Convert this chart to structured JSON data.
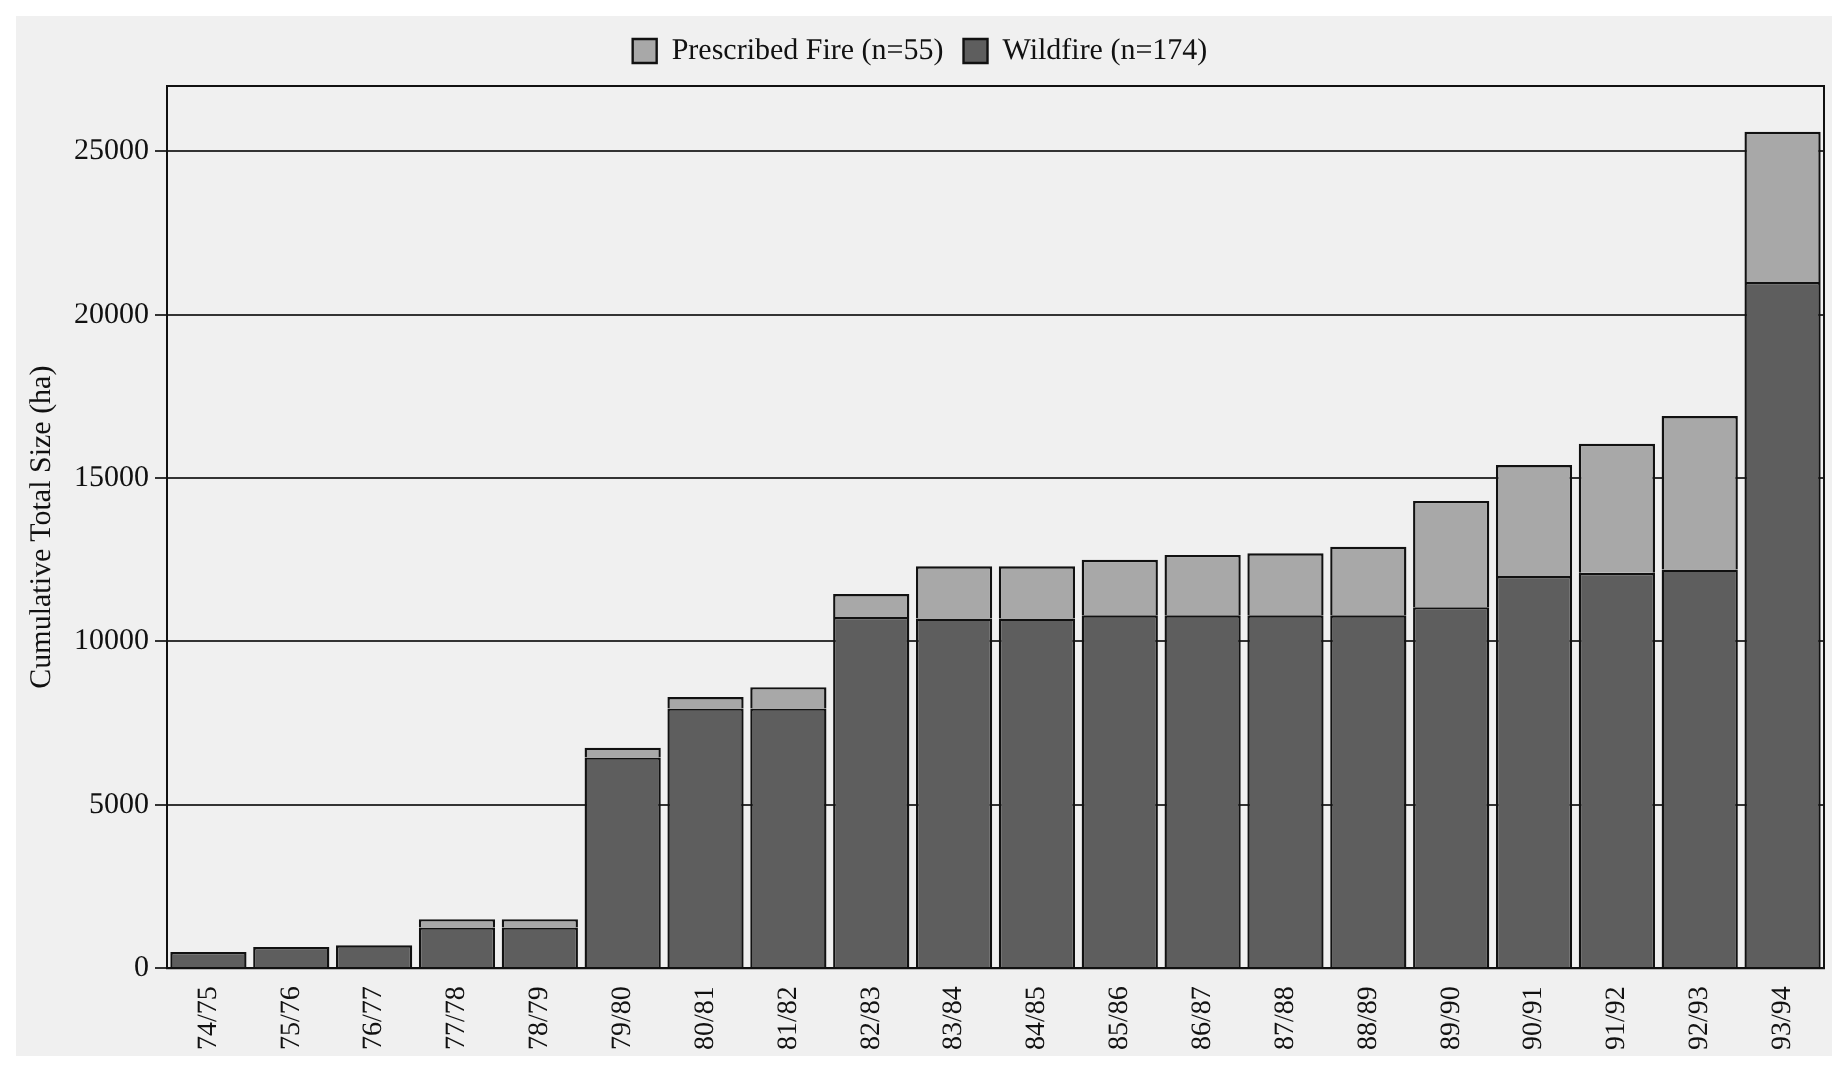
{
  "chart_data": {
    "type": "bar",
    "stacked": true,
    "ylabel": "Cumulative Total Size (ha)",
    "categories": [
      "74/75",
      "75/76",
      "76/77",
      "77/78",
      "78/79",
      "79/80",
      "80/81",
      "81/82",
      "82/83",
      "83/84",
      "84/85",
      "85/86",
      "86/87",
      "87/88",
      "88/89",
      "89/90",
      "90/91",
      "91/92",
      "92/93",
      "93/94"
    ],
    "series": [
      {
        "name": "Wildfire (n=174)",
        "color": "#5e5e5e",
        "values": [
          500,
          650,
          700,
          1250,
          1250,
          6450,
          7950,
          7950,
          10750,
          10700,
          10700,
          10800,
          10800,
          10800,
          10800,
          11050,
          12000,
          12100,
          12200,
          21000
        ]
      },
      {
        "name": "Prescribed Fire (n=55)",
        "color": "#a8a8a8",
        "values": [
          null,
          null,
          null,
          250,
          250,
          300,
          350,
          650,
          700,
          1600,
          1600,
          1700,
          1850,
          1900,
          2100,
          3250,
          3400,
          3950,
          4700,
          4600
        ]
      }
    ],
    "ylim": [
      0,
      27000
    ],
    "yticks": [
      0,
      5000,
      10000,
      15000,
      20000,
      25000
    ],
    "grid": "y",
    "legend": "top"
  }
}
